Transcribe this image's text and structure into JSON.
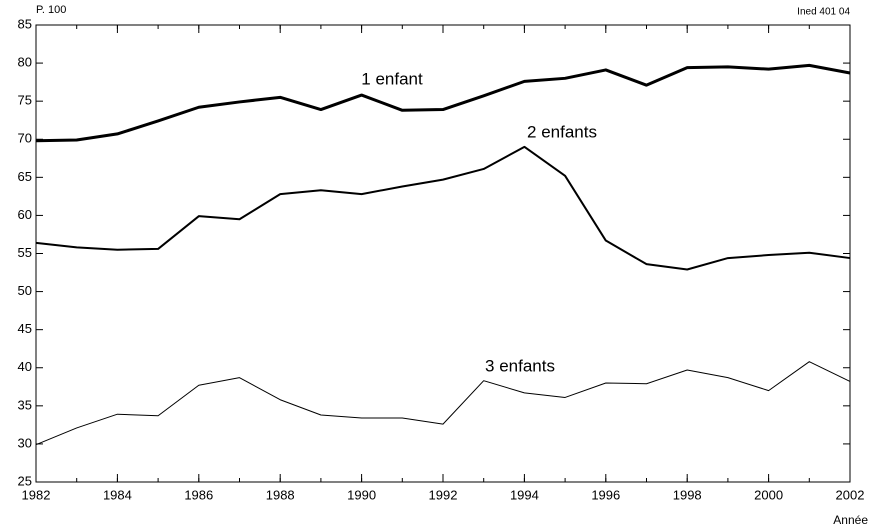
{
  "chart_data": {
    "type": "line",
    "y_axis_label": "P. 100",
    "x_axis_label": "Année",
    "source": "Ined 401 04",
    "x": [
      1982,
      1983,
      1984,
      1985,
      1986,
      1987,
      1988,
      1989,
      1990,
      1991,
      1992,
      1993,
      1994,
      1995,
      1996,
      1997,
      1998,
      1999,
      2000,
      2001,
      2002
    ],
    "series": [
      {
        "name": "1 enfant",
        "color": "#000000",
        "values": [
          69.8,
          69.9,
          70.7,
          72.4,
          74.2,
          74.9,
          75.5,
          73.9,
          75.8,
          73.8,
          73.9,
          75.7,
          77.6,
          78.0,
          79.1,
          77.1,
          79.4,
          79.5,
          79.2,
          79.7,
          78.7
        ]
      },
      {
        "name": "2 enfants",
        "color": "#000000",
        "values": [
          56.4,
          55.8,
          55.5,
          55.6,
          59.9,
          59.5,
          62.8,
          63.3,
          62.8,
          63.8,
          64.7,
          66.1,
          69.0,
          65.2,
          56.7,
          53.6,
          52.9,
          54.4,
          54.8,
          55.1,
          54.4
        ]
      },
      {
        "name": "3 enfants",
        "color": "#000000",
        "values": [
          29.9,
          32.1,
          33.9,
          33.7,
          37.7,
          38.7,
          35.8,
          33.8,
          33.4,
          33.4,
          32.6,
          38.3,
          36.7,
          36.1,
          38.0,
          37.9,
          39.7,
          38.7,
          37.0,
          40.8,
          38.2
        ]
      }
    ],
    "xlim": [
      1982,
      2002
    ],
    "xticks": [
      1982,
      1984,
      1986,
      1988,
      1990,
      1992,
      1994,
      1996,
      1998,
      2000,
      2002
    ],
    "ylim": [
      25,
      85
    ],
    "yticks": [
      25,
      30,
      35,
      40,
      45,
      50,
      55,
      60,
      65,
      70,
      75,
      80,
      85
    ],
    "grid": false
  }
}
